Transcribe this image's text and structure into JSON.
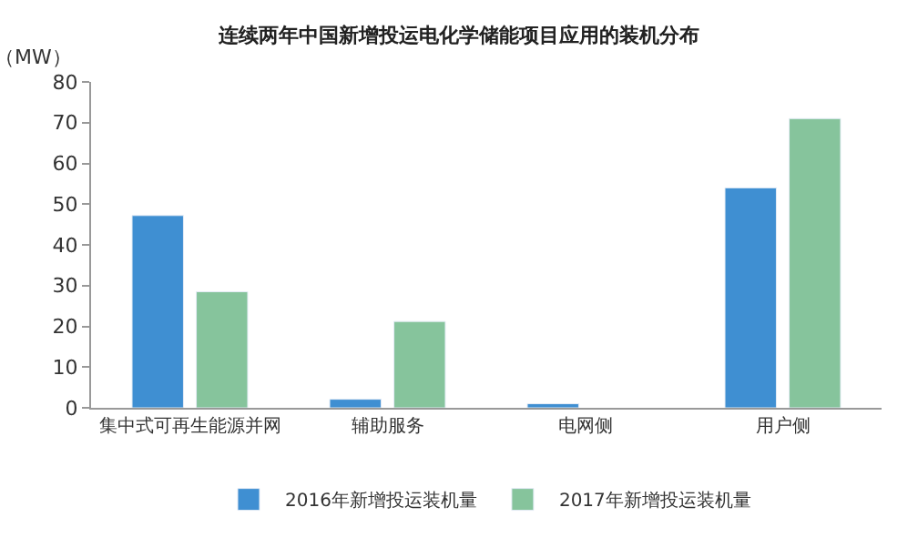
{
  "chart_data": {
    "type": "bar",
    "title": "连续两年中国新增投运电化学储能项目应用的装机分布",
    "ylabel": "（MW）",
    "categories": [
      "集中式可再生能源并网",
      "辅助服务",
      "电网侧",
      "用户侧"
    ],
    "series": [
      {
        "name": "2016年新增投运装机量",
        "color": "#3f8fd2",
        "values": [
          47.2,
          2.1,
          1.0,
          54
        ]
      },
      {
        "name": "2017年新增投运装机量",
        "color": "#86c49c",
        "values": [
          28.5,
          21.2,
          null,
          71
        ]
      }
    ],
    "ylim": [
      0,
      80
    ],
    "yticks": [
      0,
      10,
      20,
      30,
      40,
      50,
      60,
      70,
      80
    ],
    "legend": "bottom"
  }
}
